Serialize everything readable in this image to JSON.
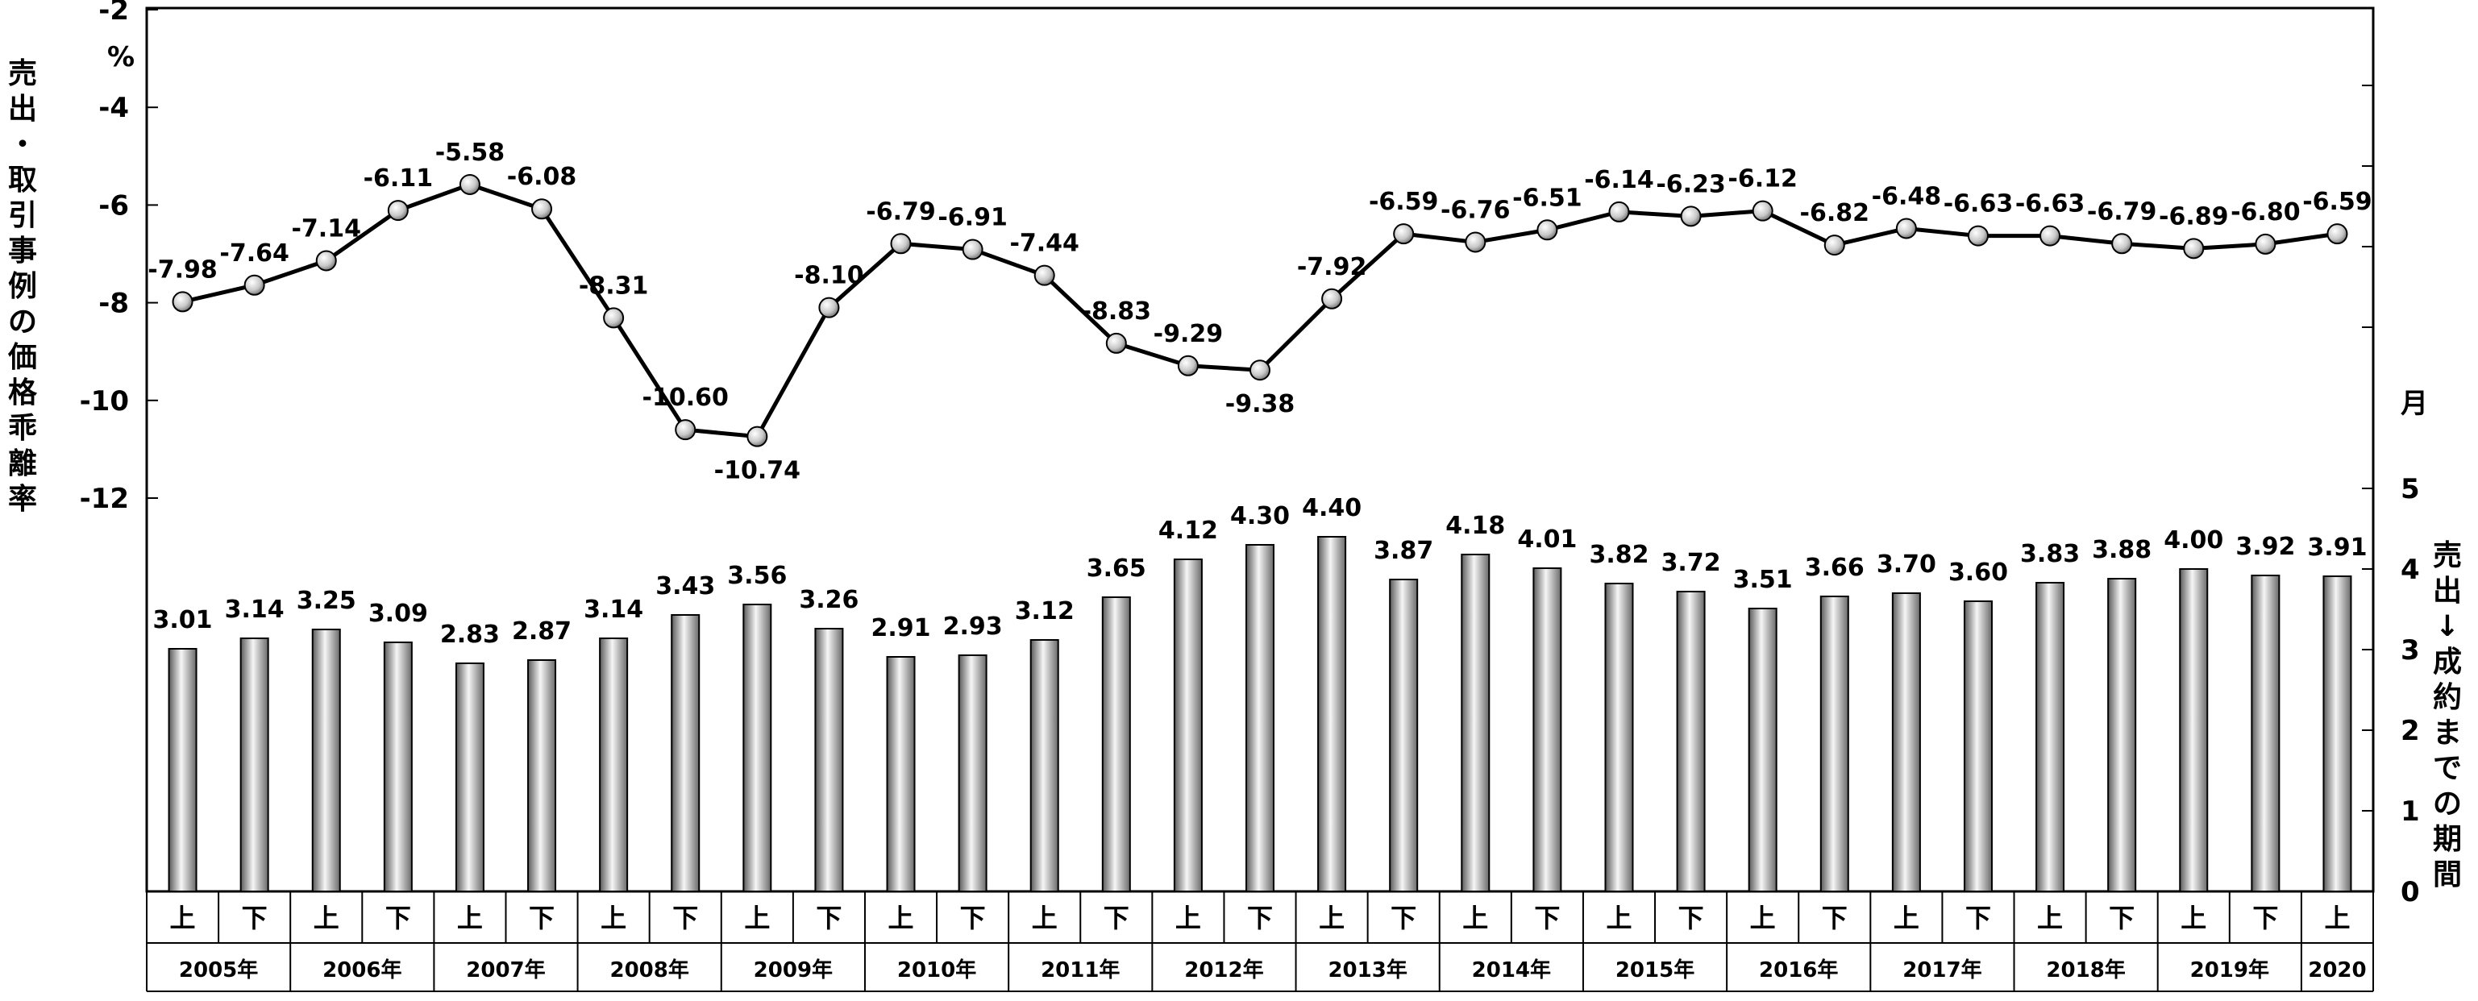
{
  "chart_data": {
    "type": "line+bar",
    "categories": [
      "上",
      "下",
      "上",
      "下",
      "上",
      "下",
      "上",
      "下",
      "上",
      "下",
      "上",
      "下",
      "上",
      "下",
      "上",
      "下",
      "上",
      "下",
      "上",
      "下",
      "上",
      "下",
      "上",
      "下",
      "上",
      "下",
      "上",
      "下",
      "上",
      "下",
      "上"
    ],
    "year_groups": [
      {
        "label": "2005年",
        "span": 2
      },
      {
        "label": "2006年",
        "span": 2
      },
      {
        "label": "2007年",
        "span": 2
      },
      {
        "label": "2008年",
        "span": 2
      },
      {
        "label": "2009年",
        "span": 2
      },
      {
        "label": "2010年",
        "span": 2
      },
      {
        "label": "2011年",
        "span": 2
      },
      {
        "label": "2012年",
        "span": 2
      },
      {
        "label": "2013年",
        "span": 2
      },
      {
        "label": "2014年",
        "span": 2
      },
      {
        "label": "2015年",
        "span": 2
      },
      {
        "label": "2016年",
        "span": 2
      },
      {
        "label": "2017年",
        "span": 2
      },
      {
        "label": "2018年",
        "span": 2
      },
      {
        "label": "2019年",
        "span": 2
      },
      {
        "label": "2020",
        "span": 1
      }
    ],
    "line_series": {
      "name": "売出・取引事例の価格乖離率",
      "values": [
        -7.98,
        -7.64,
        -7.14,
        -6.11,
        -5.58,
        -6.08,
        -8.31,
        -10.6,
        -10.74,
        -8.1,
        -6.79,
        -6.91,
        -7.44,
        -8.83,
        -9.29,
        -9.38,
        -7.92,
        -6.59,
        -6.76,
        -6.51,
        -6.14,
        -6.23,
        -6.12,
        -6.82,
        -6.48,
        -6.63,
        -6.63,
        -6.79,
        -6.89,
        -6.8,
        -6.59
      ],
      "labels": [
        "-7.98",
        "-7.64",
        "-7.14",
        "-6.11",
        "-5.58",
        "-6.08",
        "-8.31",
        "-10.60",
        "-10.74",
        "-8.10",
        "-6.79",
        "-6.91",
        "-7.44",
        "-8.83",
        "-9.29",
        "-9.38",
        "-7.92",
        "-6.59",
        "-6.76",
        "-6.51",
        "-6.14",
        "-6.23",
        "-6.12",
        "-6.82",
        "-6.48",
        "-6.63",
        "-6.63",
        "-6.79",
        "-6.89",
        "-6.80",
        "-6.59"
      ]
    },
    "bar_series": {
      "name": "売出↓成約までの期間",
      "values": [
        3.01,
        3.14,
        3.25,
        3.09,
        2.83,
        2.87,
        3.14,
        3.43,
        3.56,
        3.26,
        2.91,
        2.93,
        3.12,
        3.65,
        4.12,
        4.3,
        4.4,
        3.87,
        4.18,
        4.01,
        3.82,
        3.72,
        3.51,
        3.66,
        3.7,
        3.6,
        3.83,
        3.88,
        4.0,
        3.92,
        3.91
      ],
      "labels": [
        "3.01",
        "3.14",
        "3.25",
        "3.09",
        "2.83",
        "2.87",
        "3.14",
        "3.43",
        "3.56",
        "3.26",
        "2.91",
        "2.93",
        "3.12",
        "3.65",
        "4.12",
        "4.30",
        "4.40",
        "3.87",
        "4.18",
        "4.01",
        "3.82",
        "3.72",
        "3.51",
        "3.66",
        "3.70",
        "3.60",
        "3.83",
        "3.88",
        "4.00",
        "3.92",
        "3.91"
      ]
    },
    "left_axis": {
      "label_chars": [
        "売",
        "出",
        "・",
        "取",
        "引",
        "事",
        "例",
        "の",
        "価",
        "格",
        "乖",
        "離",
        "率"
      ],
      "unit": "%",
      "ticks": [
        "-2",
        "-4",
        "-6",
        "-8",
        "-10",
        "-12"
      ],
      "tick_values": [
        -2,
        -4,
        -6,
        -8,
        -10,
        -12
      ],
      "ylim": [
        -2,
        -12
      ]
    },
    "right_axis": {
      "label_chars": [
        "売",
        "出",
        "↓",
        "成",
        "約",
        "ま",
        "で",
        "の",
        "期",
        "間"
      ],
      "unit": "月",
      "ticks": [
        "0",
        "1",
        "2",
        "3",
        "4",
        "5"
      ],
      "tick_values": [
        0,
        1,
        2,
        3,
        4,
        5
      ],
      "ylim": [
        0,
        5
      ]
    },
    "grid": false,
    "colors": {
      "line": "#000000",
      "bar_dark": "#6a6a6a",
      "bar_light": "#f4f4f4",
      "frame": "#000000"
    }
  }
}
